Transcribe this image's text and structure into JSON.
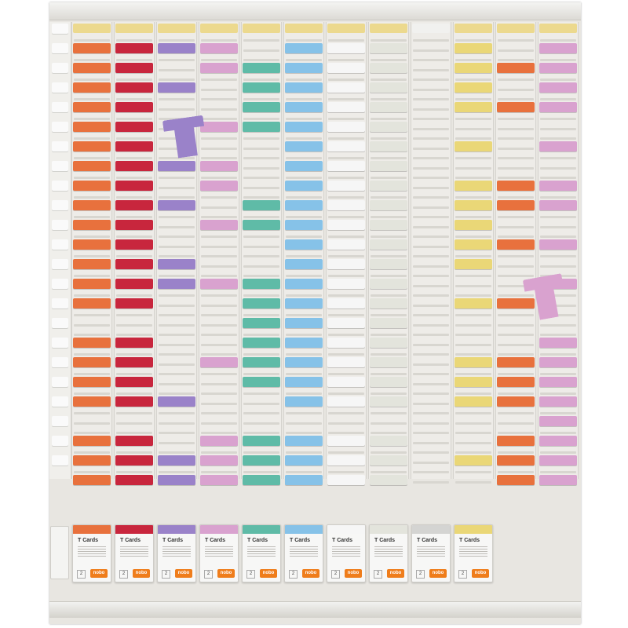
{
  "palette": {
    "orange": "#e8713d",
    "red": "#c8263d",
    "purple": "#9a82c9",
    "pink": "#d9a2cf",
    "green": "#5fbba7",
    "blue": "#86c2e8",
    "white": "#f6f6f6",
    "cream": "#e3e4dc",
    "grey": "#d4d4d2",
    "yellow": "#ead777",
    "header_yellow": "#ecd98e",
    "header_white": "#f1f1ef"
  },
  "board": {
    "columns": [
      {
        "color": "orange",
        "header": "header_yellow",
        "rows": [
          2,
          3,
          4,
          5,
          6,
          7,
          8,
          9,
          10,
          11,
          12,
          13,
          14,
          15,
          17,
          18,
          19,
          20,
          22,
          23,
          24
        ]
      },
      {
        "color": "red",
        "header": "header_yellow",
        "rows": [
          2,
          3,
          4,
          5,
          6,
          7,
          8,
          9,
          10,
          11,
          12,
          13,
          14,
          15,
          17,
          18,
          19,
          20,
          22,
          23,
          24
        ]
      },
      {
        "color": "purple",
        "header": "header_yellow",
        "rows": [
          2,
          4,
          8,
          10,
          13,
          14,
          20,
          23,
          24
        ]
      },
      {
        "color": "pink",
        "header": "header_yellow",
        "rows": [
          2,
          3,
          6,
          8,
          9,
          11,
          14,
          18,
          22,
          23,
          24
        ]
      },
      {
        "color": "green",
        "header": "header_yellow",
        "rows": [
          3,
          4,
          5,
          6,
          10,
          11,
          14,
          15,
          16,
          17,
          18,
          19,
          22,
          23,
          24
        ]
      },
      {
        "color": "blue",
        "header": "header_yellow",
        "rows": [
          2,
          3,
          4,
          5,
          6,
          7,
          8,
          9,
          10,
          11,
          12,
          13,
          14,
          15,
          16,
          17,
          18,
          19,
          20,
          22,
          23,
          24
        ]
      },
      {
        "color": "white",
        "header": "header_yellow",
        "rows": [
          2,
          3,
          4,
          5,
          6,
          7,
          8,
          9,
          10,
          11,
          12,
          13,
          14,
          15,
          16,
          17,
          18,
          19,
          20,
          22,
          23,
          24
        ]
      },
      {
        "color": "cream",
        "header": "header_yellow",
        "rows": [
          2,
          3,
          4,
          5,
          6,
          7,
          8,
          9,
          10,
          11,
          12,
          13,
          14,
          15,
          16,
          17,
          18,
          19,
          20,
          22,
          23,
          24
        ]
      },
      {
        "color": "grey",
        "header": "header_white",
        "rows": []
      },
      {
        "color": "yellow",
        "header": "header_yellow",
        "rows": [
          2,
          3,
          4,
          5,
          7,
          9,
          10,
          11,
          12,
          13,
          15,
          18,
          19,
          20,
          23
        ]
      },
      {
        "color": "orange",
        "header": "header_yellow",
        "rows": [
          3,
          5,
          9,
          10,
          12,
          15,
          18,
          19,
          20,
          22,
          23,
          24
        ]
      },
      {
        "color": "pink",
        "header": "header_yellow",
        "rows": [
          2,
          3,
          4,
          5,
          7,
          9,
          10,
          12,
          14,
          17,
          18,
          19,
          20,
          21,
          22,
          23,
          24
        ]
      }
    ],
    "stray_cards": [
      {
        "color": "purple",
        "col": 2
      },
      {
        "color": "pink",
        "col": 11
      }
    ]
  },
  "card_boxes": [
    {
      "color": "orange",
      "title": "T Cards",
      "count": "2",
      "logo": "nobo"
    },
    {
      "color": "red",
      "title": "T Cards",
      "count": "2",
      "logo": "nobo"
    },
    {
      "color": "purple",
      "title": "T Cards",
      "count": "2",
      "logo": "nobo"
    },
    {
      "color": "pink",
      "title": "T Cards",
      "count": "2",
      "logo": "nobo"
    },
    {
      "color": "green",
      "title": "T Cards",
      "count": "2",
      "logo": "nobo"
    },
    {
      "color": "blue",
      "title": "T Cards",
      "count": "2",
      "logo": "nobo"
    },
    {
      "color": "white",
      "title": "T Cards",
      "count": "2",
      "logo": "nobo"
    },
    {
      "color": "cream",
      "title": "T Cards",
      "count": "2",
      "logo": "nobo"
    },
    {
      "color": "grey",
      "title": "T Cards",
      "count": "2",
      "logo": "nobo"
    },
    {
      "color": "yellow",
      "title": "T Cards",
      "count": "2",
      "logo": "nobo"
    }
  ]
}
